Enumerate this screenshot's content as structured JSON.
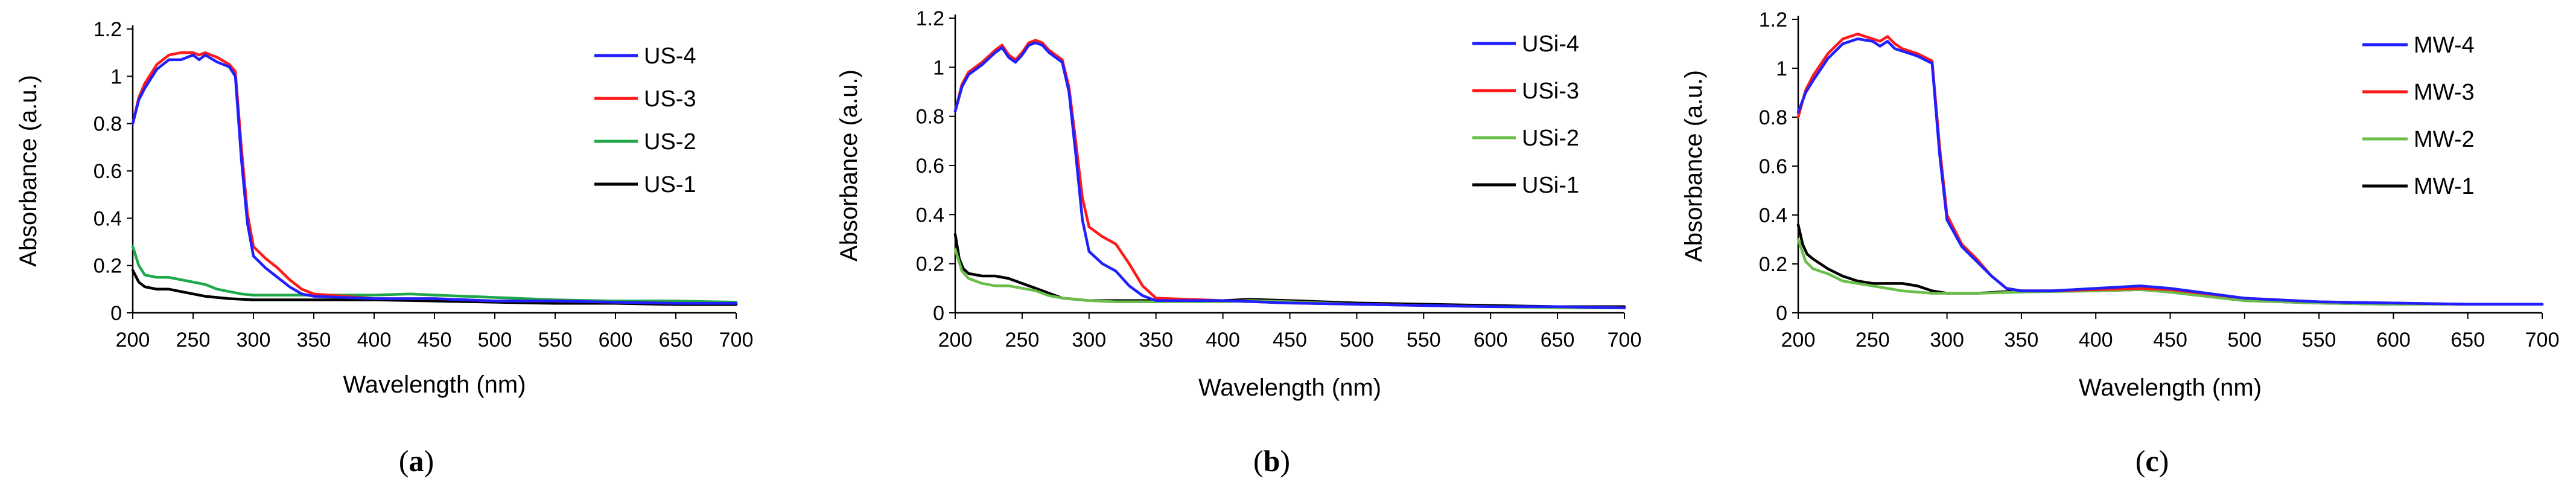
{
  "chart_data": [
    {
      "type": "line",
      "panel_label": "(a)",
      "panel_letter": "a",
      "xlabel": "Wavelength (nm)",
      "ylabel": "Absorbance (a.u.)",
      "xlim": [
        200,
        700
      ],
      "ylim": [
        0,
        1.2
      ],
      "xticks": [
        200,
        250,
        300,
        350,
        400,
        450,
        500,
        550,
        600,
        650,
        700
      ],
      "yticks": [
        0,
        0.2,
        0.4,
        0.6,
        0.8,
        1,
        1.2
      ],
      "x_tick_labels": [
        "200",
        "250",
        "300",
        "350",
        "400",
        "450",
        "500",
        "550",
        "600",
        "650",
        "700"
      ],
      "y_tick_labels": [
        "0",
        "0.2",
        "0.4",
        "0.6",
        "0.8",
        "1",
        "1.2"
      ],
      "legend_position": "top-right",
      "series": [
        {
          "name": "US-4",
          "color": "#1f1fff",
          "x": [
            200,
            205,
            210,
            220,
            230,
            240,
            250,
            255,
            260,
            270,
            280,
            285,
            290,
            295,
            300,
            310,
            320,
            330,
            340,
            350,
            400,
            450,
            500,
            550,
            600,
            650,
            700
          ],
          "y": [
            0.8,
            0.9,
            0.95,
            1.03,
            1.07,
            1.07,
            1.09,
            1.07,
            1.09,
            1.06,
            1.04,
            1.0,
            0.65,
            0.38,
            0.24,
            0.19,
            0.15,
            0.11,
            0.08,
            0.07,
            0.06,
            0.06,
            0.05,
            0.05,
            0.045,
            0.04,
            0.04
          ]
        },
        {
          "name": "US-3",
          "color": "#ff1a1a",
          "x": [
            200,
            205,
            210,
            220,
            230,
            240,
            250,
            255,
            260,
            270,
            280,
            285,
            290,
            295,
            300,
            310,
            320,
            330,
            340,
            350,
            400,
            450,
            500,
            550,
            600,
            650,
            700
          ],
          "y": [
            0.8,
            0.91,
            0.97,
            1.05,
            1.09,
            1.1,
            1.1,
            1.09,
            1.1,
            1.08,
            1.05,
            1.02,
            0.7,
            0.42,
            0.28,
            0.23,
            0.19,
            0.14,
            0.1,
            0.08,
            0.06,
            0.06,
            0.05,
            0.05,
            0.045,
            0.04,
            0.04
          ]
        },
        {
          "name": "US-2",
          "color": "#1fa84a",
          "x": [
            200,
            205,
            210,
            220,
            230,
            240,
            250,
            260,
            270,
            280,
            290,
            300,
            320,
            350,
            400,
            430,
            450,
            500,
            550,
            600,
            650,
            700
          ],
          "y": [
            0.28,
            0.2,
            0.16,
            0.15,
            0.15,
            0.14,
            0.13,
            0.12,
            0.1,
            0.09,
            0.08,
            0.075,
            0.075,
            0.075,
            0.075,
            0.08,
            0.075,
            0.065,
            0.055,
            0.05,
            0.05,
            0.045
          ]
        },
        {
          "name": "US-1",
          "color": "#000000",
          "x": [
            200,
            205,
            210,
            220,
            230,
            240,
            250,
            260,
            280,
            300,
            350,
            400,
            450,
            500,
            550,
            600,
            650,
            700
          ],
          "y": [
            0.18,
            0.13,
            0.11,
            0.1,
            0.1,
            0.09,
            0.08,
            0.07,
            0.06,
            0.055,
            0.055,
            0.055,
            0.05,
            0.045,
            0.04,
            0.04,
            0.035,
            0.035
          ]
        }
      ]
    },
    {
      "type": "line",
      "panel_label": "(b)",
      "panel_letter": "b",
      "xlabel": "Wavelength (nm)",
      "ylabel": "Absorbance (a.u.)",
      "xlim": [
        200,
        700
      ],
      "ylim": [
        0,
        1.2
      ],
      "xticks": [
        200,
        250,
        300,
        350,
        400,
        450,
        500,
        550,
        600,
        650,
        700
      ],
      "yticks": [
        0,
        0.2,
        0.4,
        0.6,
        0.8,
        1,
        1.2
      ],
      "x_tick_labels": [
        "200",
        "250",
        "300",
        "350",
        "400",
        "450",
        "500",
        "550",
        "600",
        "650",
        "700"
      ],
      "y_tick_labels": [
        "0",
        "0.2",
        "0.4",
        "0.6",
        "0.8",
        "1",
        "1.2"
      ],
      "legend_position": "top-right",
      "series": [
        {
          "name": "USi-4",
          "color": "#1f1fff",
          "x": [
            200,
            205,
            210,
            220,
            230,
            235,
            240,
            245,
            250,
            255,
            260,
            265,
            270,
            280,
            285,
            290,
            295,
            300,
            310,
            320,
            330,
            340,
            350,
            400,
            450,
            500,
            550,
            600,
            650,
            700
          ],
          "y": [
            0.82,
            0.92,
            0.97,
            1.01,
            1.06,
            1.08,
            1.04,
            1.02,
            1.05,
            1.09,
            1.1,
            1.09,
            1.06,
            1.02,
            0.9,
            0.65,
            0.38,
            0.25,
            0.2,
            0.17,
            0.11,
            0.07,
            0.05,
            0.05,
            0.04,
            0.035,
            0.03,
            0.025,
            0.025,
            0.02
          ]
        },
        {
          "name": "USi-3",
          "color": "#ff1a1a",
          "x": [
            200,
            205,
            210,
            220,
            230,
            235,
            240,
            245,
            250,
            255,
            260,
            265,
            270,
            280,
            285,
            290,
            295,
            300,
            310,
            320,
            330,
            340,
            350,
            400,
            450,
            500,
            550,
            600,
            650,
            700
          ],
          "y": [
            0.82,
            0.93,
            0.98,
            1.02,
            1.07,
            1.09,
            1.05,
            1.03,
            1.06,
            1.1,
            1.11,
            1.1,
            1.07,
            1.03,
            0.92,
            0.7,
            0.47,
            0.35,
            0.31,
            0.28,
            0.2,
            0.11,
            0.06,
            0.05,
            0.04,
            0.035,
            0.03,
            0.025,
            0.025,
            0.02
          ]
        },
        {
          "name": "USi-2",
          "color": "#6abf4b",
          "x": [
            200,
            205,
            210,
            220,
            230,
            240,
            250,
            260,
            270,
            280,
            290,
            300,
            320,
            350,
            400,
            420,
            450,
            500,
            550,
            600,
            650,
            700
          ],
          "y": [
            0.26,
            0.17,
            0.14,
            0.12,
            0.11,
            0.11,
            0.1,
            0.09,
            0.07,
            0.06,
            0.055,
            0.05,
            0.045,
            0.045,
            0.045,
            0.05,
            0.045,
            0.035,
            0.03,
            0.025,
            0.02,
            0.02
          ]
        },
        {
          "name": "USi-1",
          "color": "#000000",
          "x": [
            200,
            203,
            206,
            210,
            220,
            230,
            240,
            250,
            260,
            270,
            280,
            290,
            300,
            320,
            350,
            400,
            420,
            450,
            500,
            550,
            600,
            650,
            700
          ],
          "y": [
            0.32,
            0.22,
            0.18,
            0.16,
            0.15,
            0.15,
            0.14,
            0.12,
            0.1,
            0.08,
            0.06,
            0.055,
            0.05,
            0.05,
            0.05,
            0.05,
            0.055,
            0.05,
            0.04,
            0.035,
            0.03,
            0.025,
            0.025
          ]
        }
      ]
    },
    {
      "type": "line",
      "panel_label": "(c)",
      "panel_letter": "c",
      "xlabel": "Wavelength (nm)",
      "ylabel": "Absorbance (a.u.)",
      "xlim": [
        200,
        700
      ],
      "ylim": [
        0,
        1.2
      ],
      "xticks": [
        200,
        250,
        300,
        350,
        400,
        450,
        500,
        550,
        600,
        650,
        700
      ],
      "yticks": [
        0,
        0.2,
        0.4,
        0.6,
        0.8,
        1,
        1.2
      ],
      "x_tick_labels": [
        "200",
        "250",
        "300",
        "350",
        "400",
        "450",
        "500",
        "550",
        "600",
        "650",
        "700"
      ],
      "y_tick_labels": [
        "0",
        "0.2",
        "0.4",
        "0.6",
        "0.8",
        "1",
        "1.2"
      ],
      "legend_position": "top-right",
      "series": [
        {
          "name": "MW-4",
          "color": "#1f1fff",
          "x": [
            200,
            205,
            210,
            220,
            230,
            240,
            250,
            255,
            260,
            265,
            270,
            280,
            290,
            295,
            300,
            310,
            320,
            330,
            340,
            350,
            370,
            400,
            430,
            450,
            500,
            550,
            600,
            650,
            700
          ],
          "y": [
            0.82,
            0.9,
            0.95,
            1.04,
            1.1,
            1.12,
            1.11,
            1.09,
            1.11,
            1.08,
            1.07,
            1.05,
            1.02,
            0.65,
            0.38,
            0.27,
            0.21,
            0.15,
            0.1,
            0.09,
            0.09,
            0.1,
            0.11,
            0.1,
            0.06,
            0.045,
            0.04,
            0.035,
            0.035
          ]
        },
        {
          "name": "MW-3",
          "color": "#ff1a1a",
          "x": [
            200,
            205,
            210,
            220,
            230,
            240,
            250,
            255,
            260,
            265,
            270,
            280,
            290,
            295,
            300,
            310,
            320,
            330,
            340,
            350,
            370,
            400,
            430,
            450,
            500,
            550,
            600,
            650,
            700
          ],
          "y": [
            0.8,
            0.91,
            0.97,
            1.06,
            1.12,
            1.14,
            1.12,
            1.11,
            1.13,
            1.1,
            1.08,
            1.06,
            1.03,
            0.68,
            0.4,
            0.28,
            0.22,
            0.15,
            0.1,
            0.09,
            0.09,
            0.095,
            0.1,
            0.095,
            0.06,
            0.045,
            0.04,
            0.035,
            0.035
          ]
        },
        {
          "name": "MW-2",
          "color": "#6abf4b",
          "x": [
            200,
            205,
            210,
            220,
            230,
            240,
            250,
            260,
            270,
            280,
            290,
            300,
            320,
            350,
            400,
            430,
            450,
            500,
            550,
            600,
            650,
            700
          ],
          "y": [
            0.3,
            0.21,
            0.18,
            0.16,
            0.13,
            0.12,
            0.11,
            0.1,
            0.09,
            0.085,
            0.08,
            0.08,
            0.08,
            0.085,
            0.09,
            0.095,
            0.085,
            0.05,
            0.04,
            0.035,
            0.035,
            0.035
          ]
        },
        {
          "name": "MW-1",
          "color": "#000000",
          "x": [
            200,
            203,
            206,
            210,
            220,
            230,
            240,
            250,
            260,
            270,
            280,
            290,
            300,
            320,
            350,
            400,
            430,
            450,
            500,
            550,
            600,
            650,
            700
          ],
          "y": [
            0.36,
            0.28,
            0.24,
            0.22,
            0.18,
            0.15,
            0.13,
            0.12,
            0.12,
            0.12,
            0.11,
            0.09,
            0.08,
            0.08,
            0.09,
            0.09,
            0.095,
            0.085,
            0.05,
            0.04,
            0.035,
            0.035,
            0.035
          ]
        }
      ]
    }
  ]
}
